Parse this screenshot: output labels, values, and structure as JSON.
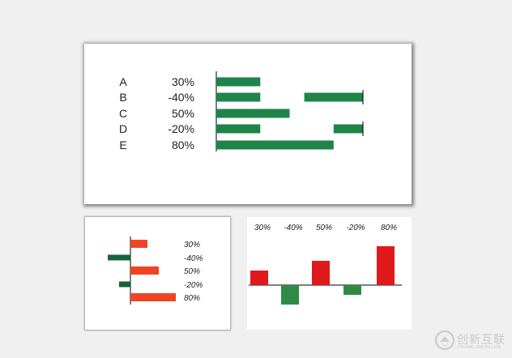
{
  "colors": {
    "green": "#1e8449",
    "dark_green": "#17633a",
    "orange_red": "#f04425",
    "red": "#e0191c",
    "column_green": "#2e8b45"
  },
  "chart_data": [
    {
      "type": "bar",
      "orientation": "horizontal",
      "categories": [
        "A",
        "B",
        "C",
        "D",
        "E"
      ],
      "value_labels": [
        "30%",
        "-40%",
        "50%",
        "-20%",
        "80%"
      ],
      "values": [
        30,
        -40,
        50,
        -20,
        80
      ],
      "xlim": [
        0,
        100
      ],
      "grid": false,
      "legend": "none"
    },
    {
      "type": "bar",
      "orientation": "horizontal",
      "value_labels": [
        "30%",
        "-40%",
        "50%",
        "-20%",
        "80%"
      ],
      "values": [
        30,
        -40,
        50,
        -20,
        80
      ],
      "xlim": [
        -40,
        80
      ],
      "grid": false,
      "legend": "none"
    },
    {
      "type": "bar",
      "orientation": "vertical",
      "value_labels": [
        "30%",
        "-40%",
        "50%",
        "-20%",
        "80%"
      ],
      "values": [
        30,
        -40,
        50,
        -20,
        80
      ],
      "ylim": [
        -40,
        80
      ],
      "grid": false,
      "legend": "none"
    }
  ],
  "watermark": {
    "text": "创新互联",
    "subtext": "CHUANG XIN HU LIAN",
    "icon": "cxhl-logo-icon"
  }
}
